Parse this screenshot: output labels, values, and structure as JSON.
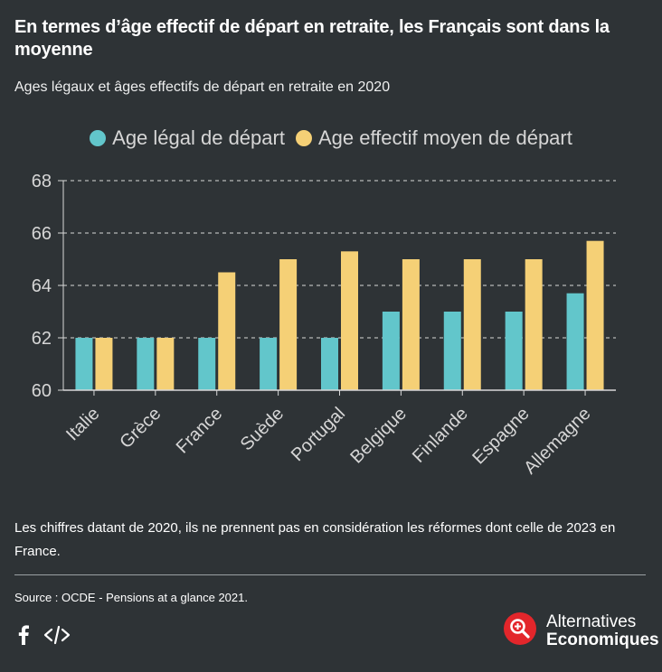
{
  "header": {
    "title": "En termes d’âge effectif de départ en retraite, les Français sont dans la moyenne",
    "subtitle": "Ages légaux et âges effectifs de départ en retraite en 2020"
  },
  "colors": {
    "background": "#2e3336",
    "series_legal": "#62c6cb",
    "series_effective": "#f5d076",
    "grid": "#d8d8d8",
    "axis_text": "#d6d6d6",
    "logo_red": "#e3262b"
  },
  "chart_data": {
    "type": "bar",
    "title": "",
    "xlabel": "",
    "ylabel": "",
    "ylim": [
      60,
      68
    ],
    "yticks": [
      60,
      62,
      64,
      66,
      68
    ],
    "grid": true,
    "legend_position": "top-center",
    "categories": [
      "Italie",
      "Grèce",
      "France",
      "Suède",
      "Portugal",
      "Belgique",
      "Finlande",
      "Espagne",
      "Allemagne"
    ],
    "series": [
      {
        "name": "Age légal de départ",
        "color": "#62c6cb",
        "values": [
          62,
          62,
          62,
          62,
          62,
          63,
          63,
          63,
          63.7
        ]
      },
      {
        "name": "Age effectif moyen de départ",
        "color": "#f5d076",
        "values": [
          62,
          62,
          64.5,
          65,
          65.3,
          65,
          65,
          65,
          65.7
        ]
      }
    ]
  },
  "footer": {
    "note": "Les chiffres datant de 2020, ils ne prennent pas en considération les réformes dont celle de 2023 en France.",
    "source": "Source : OCDE - Pensions at a glance 2021."
  },
  "share": {
    "facebook_icon": "facebook-icon",
    "embed_icon": "embed-code-icon"
  },
  "logo": {
    "line1": "Alternatives",
    "line2": "Economiques",
    "icon": "magnifier-plus-icon"
  }
}
